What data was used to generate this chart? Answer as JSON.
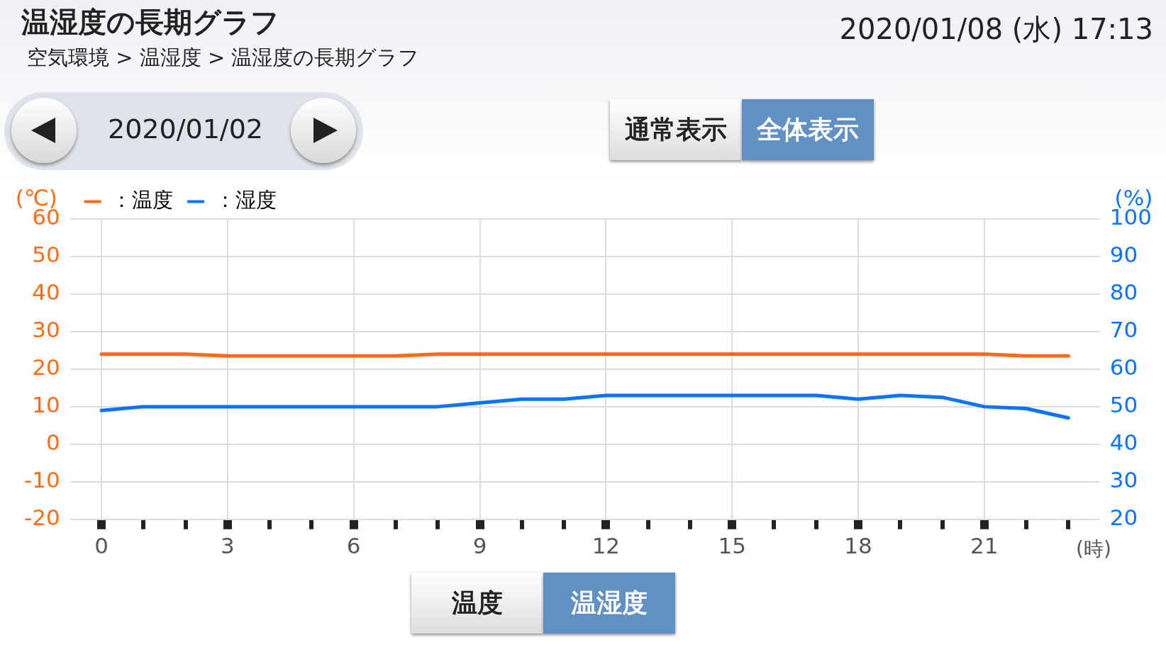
{
  "chart_data": {
    "type": "line",
    "title": "温湿度の長期グラフ",
    "subtitle": "空気環境 > 温湿度 > 温湿度の長期グラフ",
    "annotations": [
      "2020/01/08 (水) 17:13",
      "2020/01/02",
      "通常表示",
      "全体表示",
      "温度",
      "温湿度"
    ],
    "x": [
      0,
      1,
      2,
      3,
      4,
      5,
      6,
      7,
      8,
      9,
      10,
      11,
      12,
      13,
      14,
      15,
      16,
      17,
      18,
      19,
      20,
      21,
      22,
      23
    ],
    "xlim": [
      -0.75,
      23.75
    ],
    "xticks": [
      0,
      {
        "value": 1,
        "label": null
      },
      {
        "value": 2,
        "label": null
      },
      3,
      {
        "value": 4,
        "label": null
      },
      {
        "value": 5,
        "label": null
      },
      6,
      {
        "value": 7,
        "label": null
      },
      {
        "value": 8,
        "label": null
      },
      9,
      {
        "value": 10,
        "label": null
      },
      {
        "value": 11,
        "label": null
      },
      12,
      {
        "value": 13,
        "label": null
      },
      {
        "value": 14,
        "label": null
      },
      15,
      {
        "value": 16,
        "label": null
      },
      {
        "value": 17,
        "label": null
      },
      18,
      {
        "value": 19,
        "label": null
      },
      {
        "value": 20,
        "label": null
      },
      21,
      {
        "value": 22,
        "label": null
      },
      {
        "value": 23,
        "label": null
      }
    ],
    "xlabel": "(時)",
    "ylabel": "(℃)",
    "y2label": "(%)",
    "ylim": [
      -20,
      60
    ],
    "yticks": [
      -20,
      -10,
      0,
      10,
      20,
      30,
      40,
      50,
      60
    ],
    "y2lim": [
      20,
      100
    ],
    "y2ticks": [
      20,
      30,
      40,
      50,
      60,
      70,
      80,
      90,
      100
    ],
    "series": [
      {
        "name": "：温度",
        "color": "#ff6a13",
        "values": [
          24,
          24,
          24,
          23.5,
          23.5,
          23.5,
          23.5,
          23.5,
          24,
          24,
          24,
          24,
          24,
          24,
          24,
          24,
          24,
          24,
          24,
          24,
          24,
          24,
          23.5,
          23.5
        ]
      },
      {
        "name": "：湿度",
        "color": "#0a74ff",
        "axis": "y2",
        "values": [
          49,
          50,
          50,
          50,
          50,
          50,
          50,
          50,
          50,
          51,
          52,
          52,
          53,
          53,
          53,
          53,
          53,
          53,
          52,
          53,
          52.5,
          50,
          49.5,
          47
        ]
      }
    ],
    "grid": true,
    "legend": "top left",
    "marker": "none",
    "line_style": "solid"
  }
}
